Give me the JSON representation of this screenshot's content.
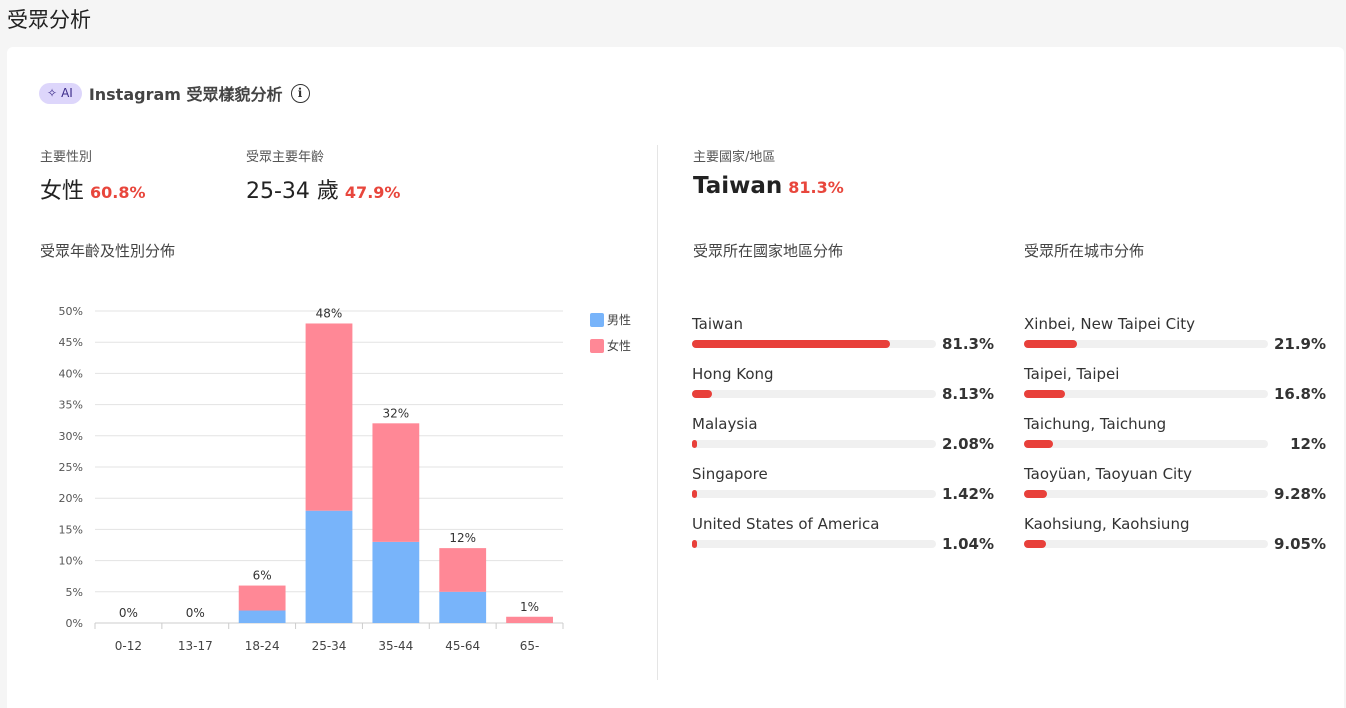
{
  "page": {
    "title": "受眾分析"
  },
  "header": {
    "ai_label": "AI",
    "title": "Instagram 受眾樣貌分析",
    "info": "i"
  },
  "stats": {
    "gender": {
      "label": "主要性別",
      "value": "女性",
      "pct": "60.8%"
    },
    "age": {
      "label": "受眾主要年齡",
      "value": "25-34 歲",
      "pct": "47.9%"
    },
    "country": {
      "label": "主要國家/地區",
      "value": "Taiwan",
      "pct": "81.3%"
    }
  },
  "sections": {
    "age_gender": "受眾年齡及性別分佈",
    "country": "受眾所在國家地區分佈",
    "city": "受眾所在城市分佈"
  },
  "chart_data": {
    "type": "bar",
    "stacked": true,
    "categories": [
      "0-12",
      "13-17",
      "18-24",
      "25-34",
      "35-44",
      "45-64",
      "65-"
    ],
    "series": [
      {
        "name": "男性",
        "color": "#78b4fa",
        "values": [
          0,
          0,
          2,
          18,
          13,
          5,
          0
        ]
      },
      {
        "name": "女性",
        "color": "#ff8896",
        "values": [
          0,
          0,
          4,
          30,
          19,
          7,
          1
        ]
      }
    ],
    "totals": [
      "0%",
      "0%",
      "6%",
      "48%",
      "32%",
      "12%",
      "1%"
    ],
    "y_ticks": [
      "0%",
      "5%",
      "10%",
      "15%",
      "20%",
      "25%",
      "30%",
      "35%",
      "40%",
      "45%",
      "50%"
    ],
    "ylim": [
      0,
      50
    ],
    "grid": true,
    "legend": "right"
  },
  "countries": [
    {
      "name": "Taiwan",
      "pct": "81.3%",
      "value": 81.3
    },
    {
      "name": "Hong Kong",
      "pct": "8.13%",
      "value": 8.13
    },
    {
      "name": "Malaysia",
      "pct": "2.08%",
      "value": 2.08
    },
    {
      "name": "Singapore",
      "pct": "1.42%",
      "value": 1.42
    },
    {
      "name": "United States of America",
      "pct": "1.04%",
      "value": 1.04
    }
  ],
  "cities": [
    {
      "name": "Xinbei, New Taipei City",
      "pct": "21.9%",
      "value": 21.9
    },
    {
      "name": "Taipei, Taipei",
      "pct": "16.8%",
      "value": 16.8
    },
    {
      "name": "Taichung, Taichung",
      "pct": "12%",
      "value": 12
    },
    {
      "name": "Taoyüan, Taoyuan City",
      "pct": "9.28%",
      "value": 9.28
    },
    {
      "name": "Kaohsiung, Kaohsiung",
      "pct": "9.05%",
      "value": 9.05
    }
  ]
}
